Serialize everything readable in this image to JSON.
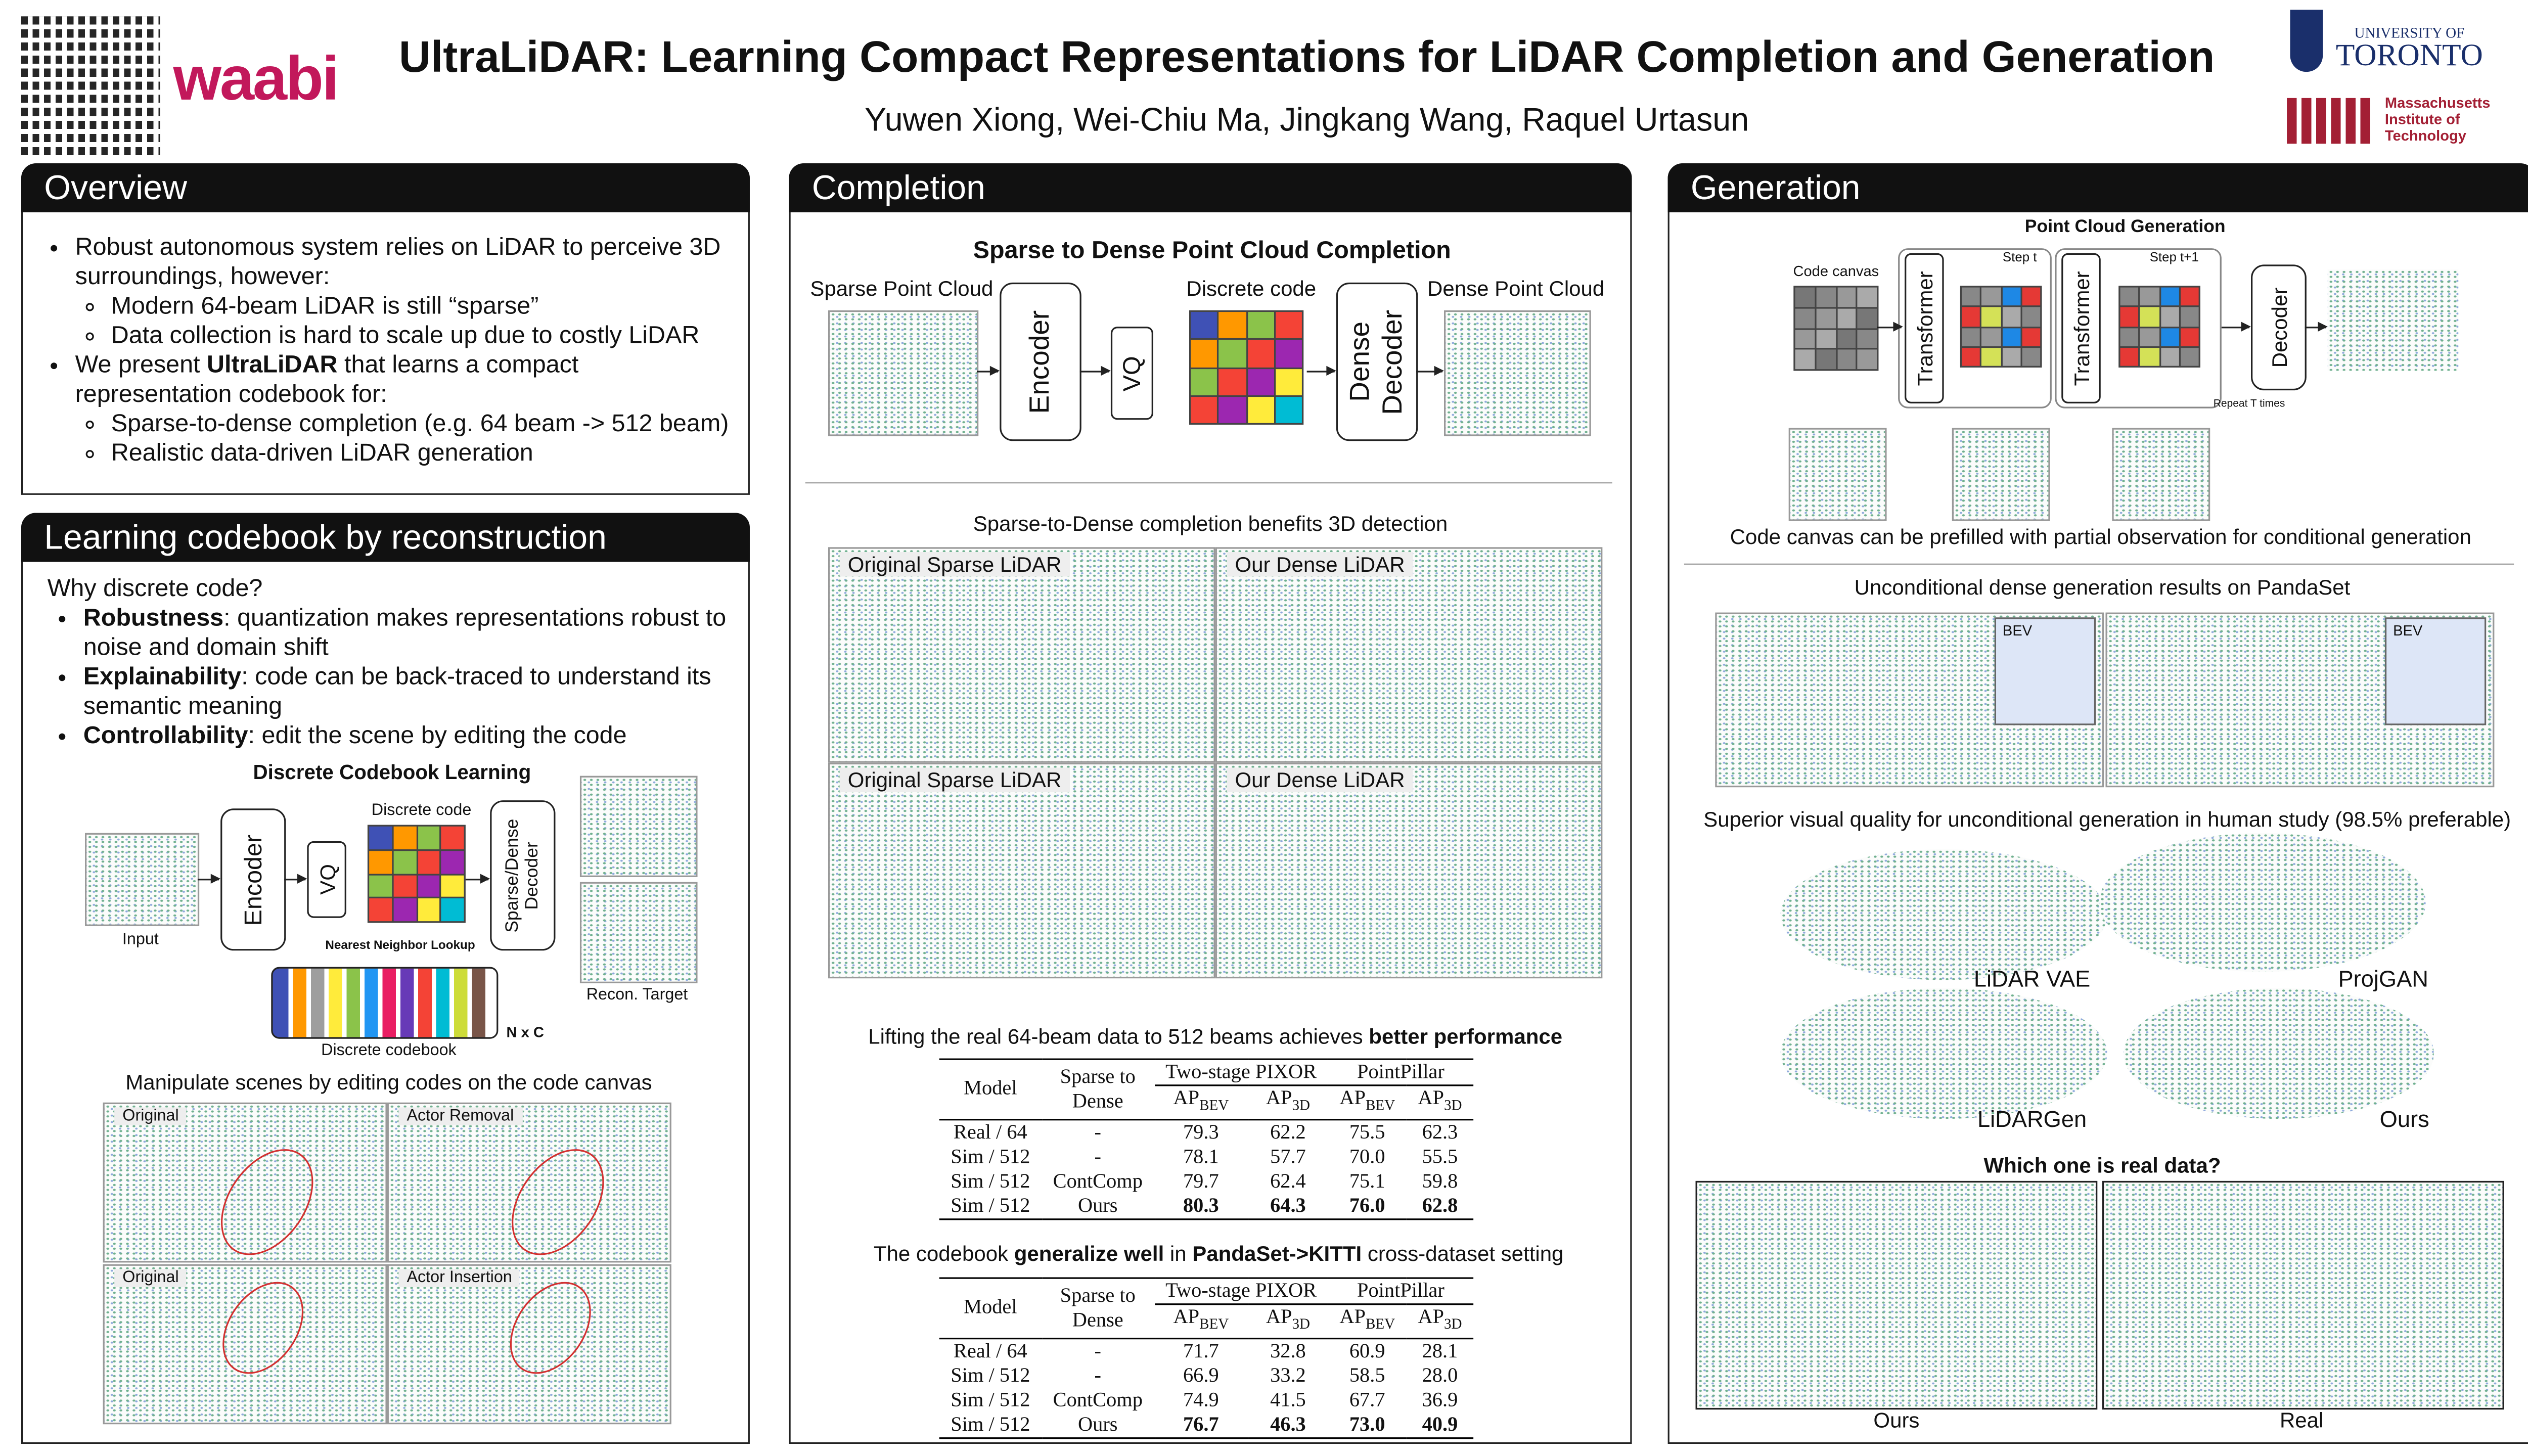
{
  "header": {
    "title": "UltraLiDAR: Learning Compact Representations for LiDAR Completion and Generation",
    "authors": "Yuwen Xiong, Wei-Chiu Ma, Jingkang Wang, Raquel Urtasun",
    "logo": "waabi",
    "toronto_top": "UNIVERSITY OF",
    "toronto": "TORONTO",
    "mit_name": [
      "Massachusetts",
      "Institute of",
      "Technology"
    ]
  },
  "overview": {
    "heading": "Overview",
    "items": [
      {
        "text": [
          {
            "text": "Robust autonomous system relies on LiDAR to perceive 3D surroundings, however:"
          }
        ],
        "sub": [
          "Modern 64-beam LiDAR is still “sparse”",
          "Data collection is hard to scale up due to costly LiDAR"
        ]
      },
      {
        "text": [
          {
            "text": "We present "
          },
          {
            "text": "UltraLiDAR",
            "bold": true
          },
          {
            "text": " that learns a compact representation codebook for:"
          }
        ],
        "sub": [
          "Sparse-to-dense completion (e.g. 64 beam -> 512 beam)",
          "Realistic data-driven LiDAR generation"
        ]
      }
    ]
  },
  "codebook": {
    "heading": "Learning codebook by reconstruction",
    "question": "Why discrete code?",
    "items": [
      {
        "bold": "Robustness",
        "text": ": quantization makes representations robust to noise and domain shift"
      },
      {
        "bold": "Explainability",
        "text": ": code can be back-traced to understand its semantic meaning"
      },
      {
        "bold": "Controllability",
        "text": ": edit the scene by editing the code"
      }
    ],
    "diagram": {
      "title": "Discrete Codebook Learning",
      "input": "Input",
      "encoder": "Encoder",
      "vq": "VQ",
      "code": "Discrete code",
      "decoder": "Sparse/Dense Decoder",
      "lookup": "Nearest Neighbor Lookup",
      "codebook": "Discrete codebook",
      "size": "N x C",
      "target": "Recon. Target"
    },
    "editing": {
      "caption": "Manipulate scenes by editing codes on the code canvas",
      "panels": [
        "Original",
        "Actor Removal",
        "Original",
        "Actor Insertion"
      ]
    }
  },
  "completion": {
    "heading": "Completion",
    "diagram": {
      "title": "Sparse to Dense Point Cloud Completion",
      "input": "Sparse Point Cloud",
      "encoder": "Encoder",
      "vq": "VQ",
      "code": "Discrete code",
      "decoder": "Dense Decoder",
      "output": "Dense Point Cloud"
    },
    "detection": {
      "caption": "Sparse-to-Dense completion benefits 3D detection",
      "panels": [
        "Original Sparse LiDAR",
        "Our Dense LiDAR",
        "Original Sparse LiDAR",
        "Our Dense LiDAR"
      ]
    },
    "tables": [
      {
        "caption": [
          {
            "text": "Lifting the real 64-beam data  to 512 beams achieves "
          },
          {
            "text": "better performance",
            "bold": true
          }
        ],
        "model": "Model",
        "method": "Sparse to Dense",
        "groups": [
          "Two-stage PIXOR",
          "PointPillar"
        ],
        "metrics": [
          {
            "base": "AP",
            "sub": "BEV"
          },
          {
            "base": "AP",
            "sub": "3D"
          }
        ],
        "rows": [
          [
            "Real / 64",
            "-",
            "79.3",
            "62.2",
            "75.5",
            "62.3"
          ],
          [
            "Sim / 512",
            "-",
            "78.1",
            "57.7",
            "70.0",
            "55.5"
          ],
          [
            "Sim / 512",
            "ContComp",
            "79.7",
            "62.4",
            "75.1",
            "59.8"
          ],
          [
            "Sim / 512",
            "Ours",
            "80.3",
            "64.3",
            "76.0",
            "62.8"
          ]
        ],
        "bold_rows": [
          3
        ]
      },
      {
        "caption": [
          {
            "text": "The codebook "
          },
          {
            "text": "generalize well",
            "bold": true
          },
          {
            "text": " in "
          },
          {
            "text": "PandaSet->KITTI",
            "bold": true
          },
          {
            "text": " cross-dataset setting"
          }
        ],
        "model": "Model",
        "method": "Sparse to Dense",
        "groups": [
          "Two-stage PIXOR",
          "PointPillar"
        ],
        "metrics": [
          {
            "base": "AP",
            "sub": "BEV"
          },
          {
            "base": "AP",
            "sub": "3D"
          }
        ],
        "rows": [
          [
            "Real / 64",
            "-",
            "71.7",
            "32.8",
            "60.9",
            "28.1"
          ],
          [
            "Sim / 512",
            "-",
            "66.9",
            "33.2",
            "58.5",
            "28.0"
          ],
          [
            "Sim / 512",
            "ContComp",
            "74.9",
            "41.5",
            "67.7",
            "36.9"
          ],
          [
            "Sim / 512",
            "Ours",
            "76.7",
            "46.3",
            "73.0",
            "40.9"
          ]
        ],
        "bold_rows": [
          3
        ]
      }
    ]
  },
  "generation": {
    "heading": "Generation",
    "diagram": {
      "title": "Point Cloud Generation",
      "canvas": "Code canvas",
      "transformer": "Transformer",
      "step1": "Step t",
      "step2": "Step t+1",
      "decoder": "Decoder",
      "repeat": "Repeat T times"
    },
    "conditional": "Code canvas can be prefilled with partial observation for conditional generation",
    "unconditional": {
      "caption": "Unconditional dense generation results on PandaSet",
      "bev": "BEV"
    },
    "study": {
      "caption": "Superior visual quality for unconditional generation in human study (98.5% preferable)",
      "methods": [
        "LiDAR VAE",
        "ProjGAN",
        "LiDARGen",
        "Ours"
      ]
    },
    "real": {
      "question": "Which one is real data?",
      "labels": [
        "Ours",
        "Real"
      ]
    }
  }
}
